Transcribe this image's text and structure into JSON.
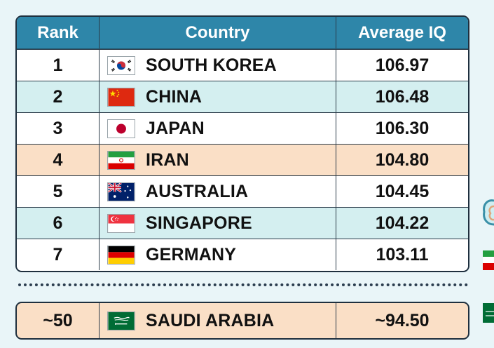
{
  "header": {
    "rank": "Rank",
    "country": "Country",
    "iq": "Average IQ"
  },
  "rows": [
    {
      "rank": "1",
      "country": "SOUTH KOREA",
      "iq": "106.97",
      "flag": "south-korea-flag",
      "style": "white"
    },
    {
      "rank": "2",
      "country": "CHINA",
      "iq": "106.48",
      "flag": "china-flag",
      "style": "teal"
    },
    {
      "rank": "3",
      "country": "JAPAN",
      "iq": "106.30",
      "flag": "japan-flag",
      "style": "white"
    },
    {
      "rank": "4",
      "country": "IRAN",
      "iq": "104.80",
      "flag": "iran-flag",
      "style": "peach"
    },
    {
      "rank": "5",
      "country": "AUSTRALIA",
      "iq": "104.45",
      "flag": "australia-flag",
      "style": "white"
    },
    {
      "rank": "6",
      "country": "SINGAPORE",
      "iq": "104.22",
      "flag": "singapore-flag",
      "style": "teal"
    },
    {
      "rank": "7",
      "country": "GERMANY",
      "iq": "103.11",
      "flag": "germany-flag",
      "style": "white"
    }
  ],
  "extra": {
    "rank": "~50",
    "country": "SAUDI ARABIA",
    "iq": "~94.50",
    "flag": "saudi-arabia-flag"
  },
  "colors": {
    "header_bg": "#2e86a9",
    "teal_row": "#d4eff0",
    "peach_row": "#fadfc6",
    "border": "#1e2f3e"
  }
}
